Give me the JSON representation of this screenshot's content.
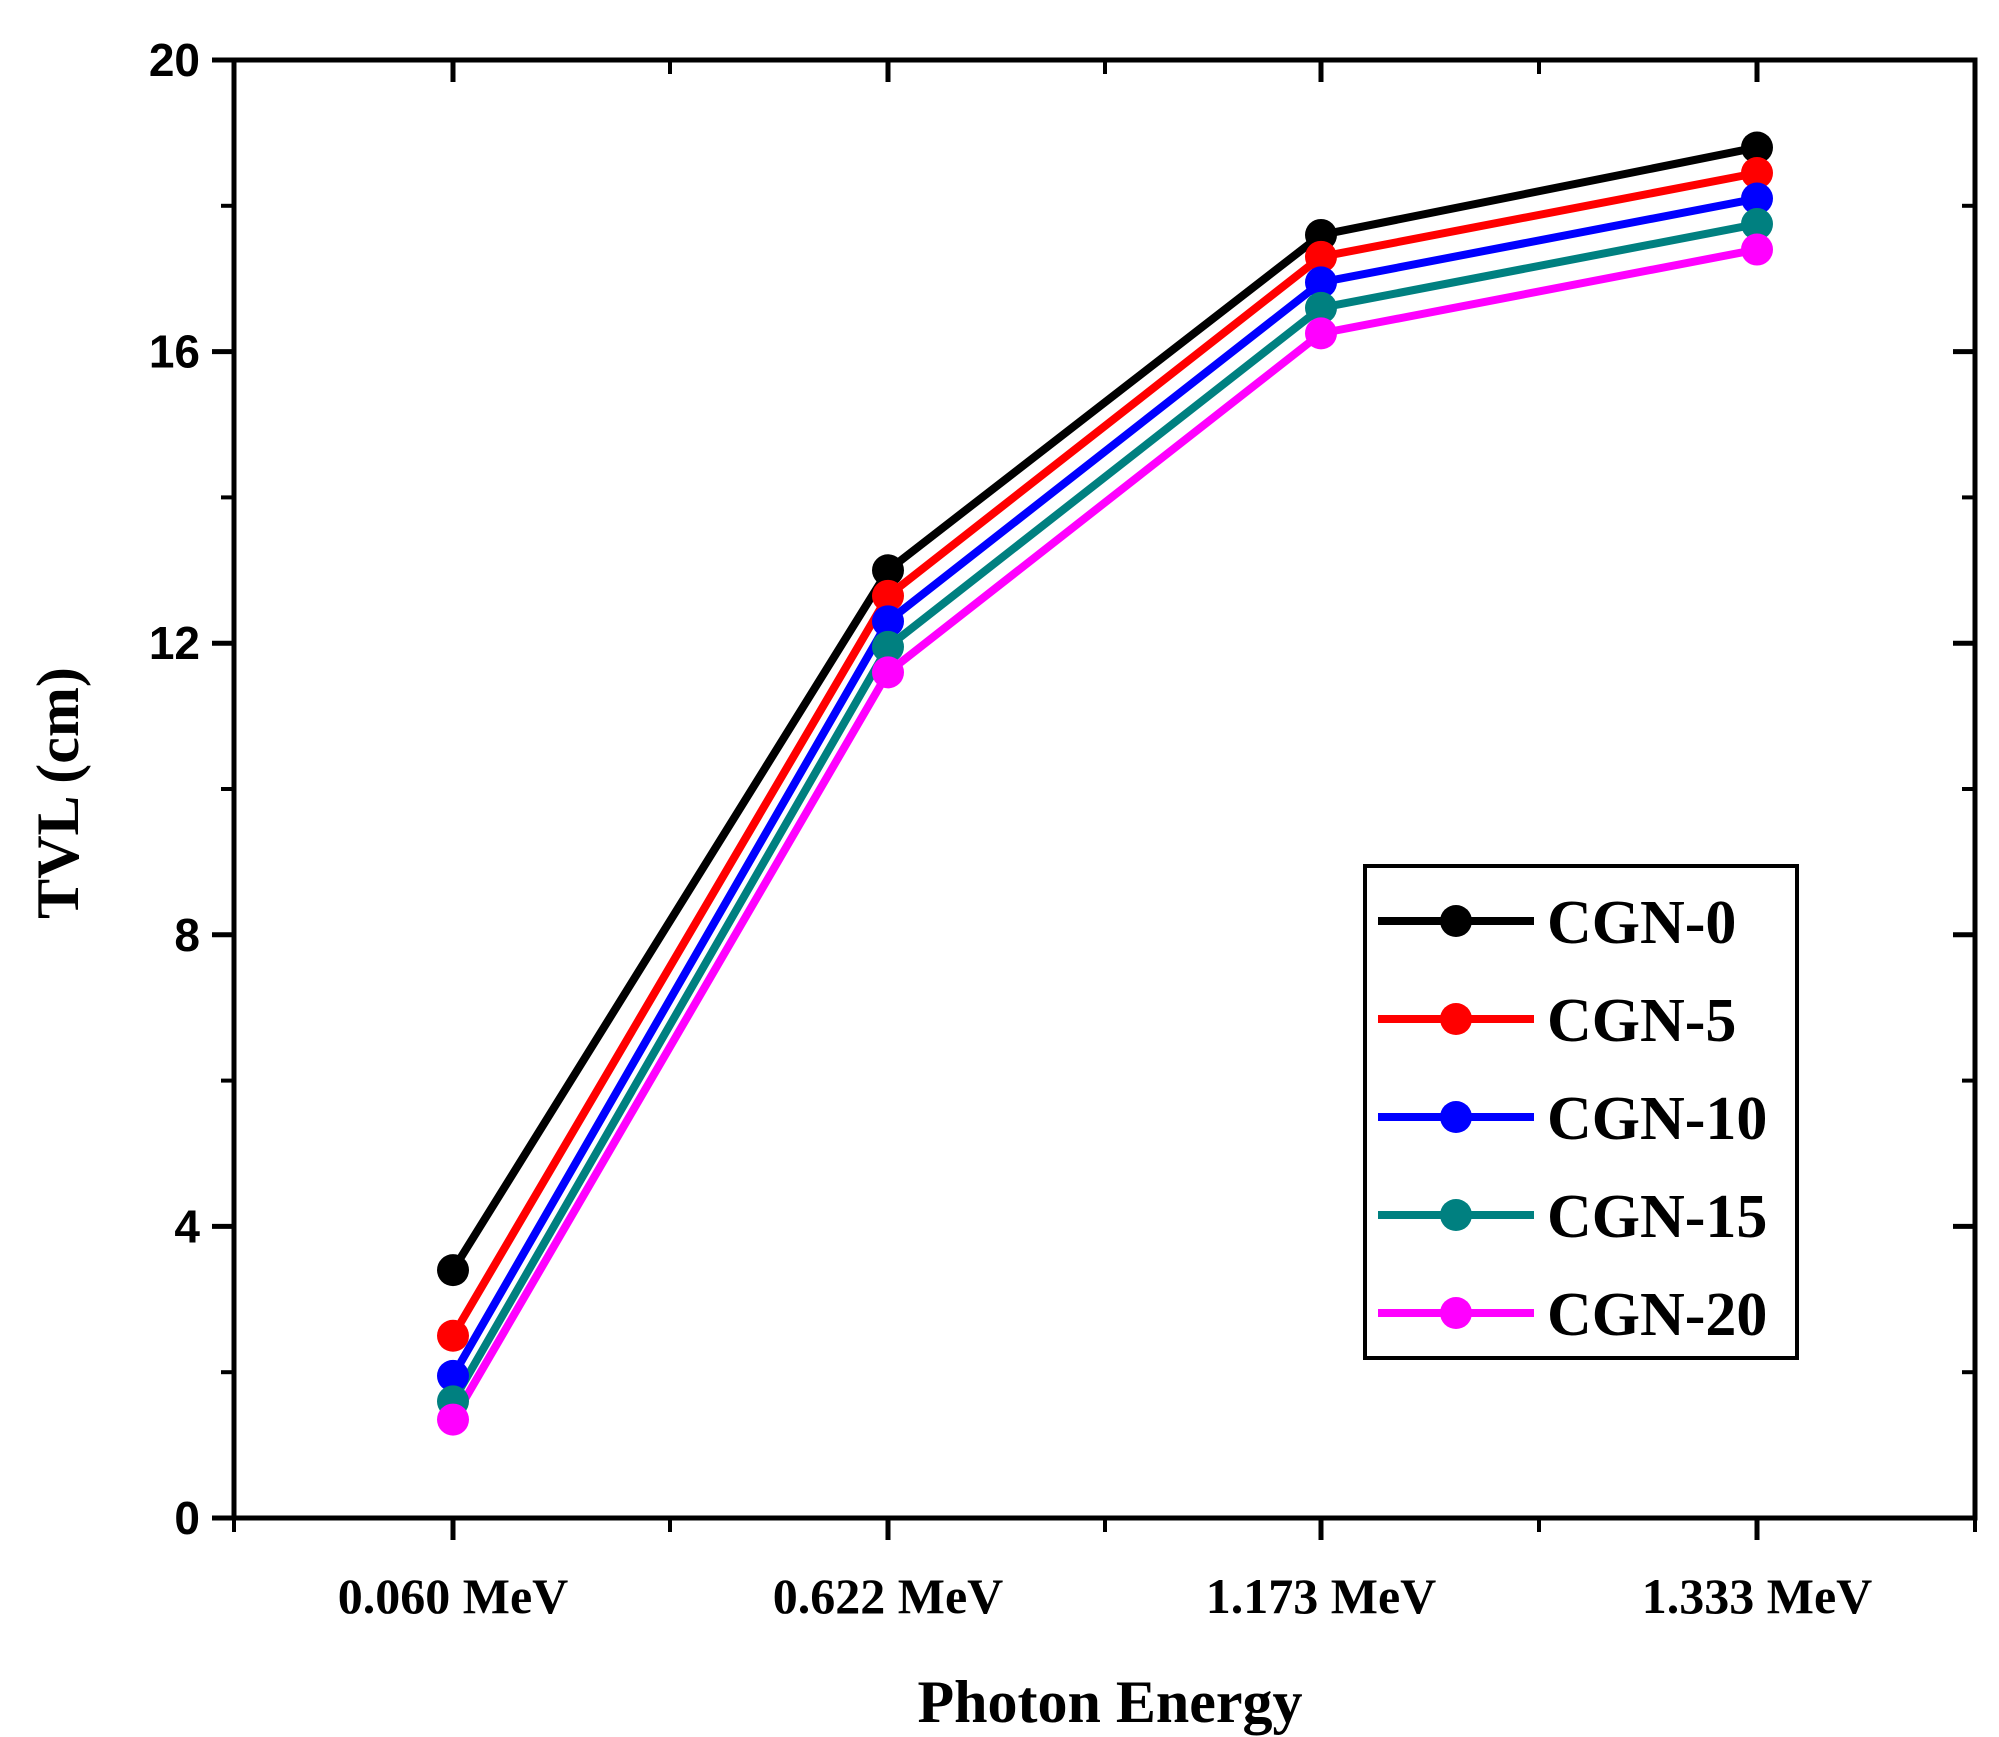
{
  "chart_data": {
    "type": "line",
    "title": "",
    "xlabel": "Photon Energy",
    "ylabel": "TVL (cm)",
    "categories": [
      "0.060 MeV",
      "0.622 MeV",
      "1.173 MeV",
      "1.333 MeV"
    ],
    "ylim": [
      0,
      20
    ],
    "yticks": [
      0,
      4,
      8,
      12,
      16,
      20
    ],
    "grid": false,
    "legend_position": "bottom-right",
    "series": [
      {
        "name": "CGN-0",
        "color": "#000000",
        "values": [
          3.4,
          13.0,
          17.6,
          18.8
        ]
      },
      {
        "name": "CGN-5",
        "color": "#ff0000",
        "values": [
          2.5,
          12.65,
          17.3,
          18.45
        ]
      },
      {
        "name": "CGN-10",
        "color": "#0000ff",
        "values": [
          1.95,
          12.3,
          16.95,
          18.1
        ]
      },
      {
        "name": "CGN-15",
        "color": "#008080",
        "values": [
          1.6,
          11.95,
          16.6,
          17.75
        ]
      },
      {
        "name": "CGN-20",
        "color": "#ff00ff",
        "values": [
          1.35,
          11.6,
          16.25,
          17.4
        ]
      }
    ]
  }
}
